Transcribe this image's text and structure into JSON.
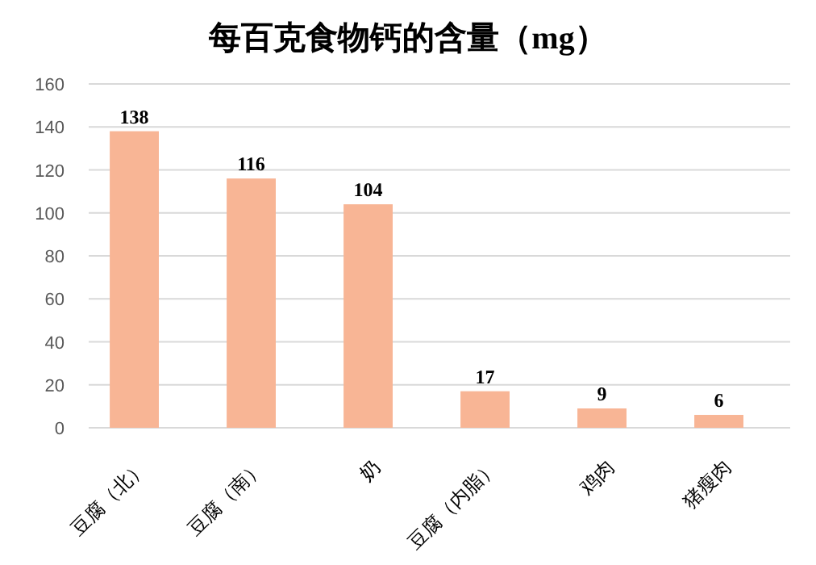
{
  "chart_data": {
    "type": "bar",
    "title": "每百克食物钙的含量（mg）",
    "categories": [
      "豆腐（北）",
      "豆腐（南）",
      "奶",
      "豆腐（内脂）",
      "鸡肉",
      "猪瘦肉"
    ],
    "values": [
      138,
      116,
      104,
      17,
      9,
      6
    ],
    "color": "#f8b595",
    "ylim": [
      0,
      160
    ],
    "yticks": [
      0,
      20,
      40,
      60,
      80,
      100,
      120,
      140,
      160
    ],
    "grid": "y",
    "data_labels": true
  }
}
